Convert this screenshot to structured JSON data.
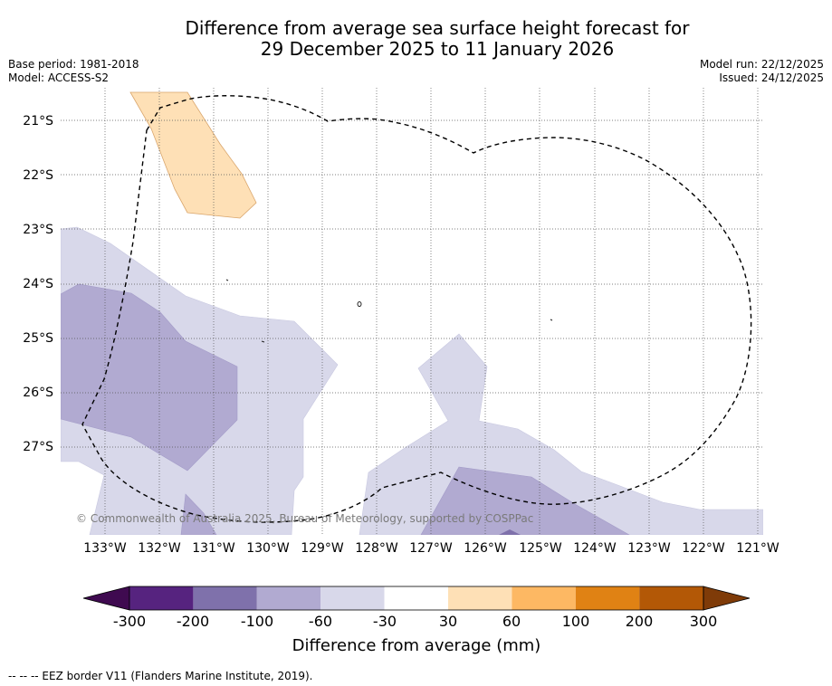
{
  "header": {
    "title_line1": "Difference from average sea surface height forecast for",
    "title_line2": "29 December 2025 to 11 January 2026",
    "base_period": "Base period: 1981-2018",
    "model": "Model: ACCESS-S2",
    "model_run": "Model run: 22/12/2025",
    "issued": "Issued: 24/12/2025"
  },
  "map": {
    "lat_labels": [
      "21°S",
      "22°S",
      "23°S",
      "24°S",
      "25°S",
      "26°S",
      "27°S"
    ],
    "lon_labels": [
      "133°W",
      "132°W",
      "131°W",
      "130°W",
      "129°W",
      "128°W",
      "127°W",
      "126°W",
      "125°W",
      "124°W",
      "123°W",
      "122°W",
      "121°W"
    ],
    "copyright": "© Commonwealth of Australia 2025, Bureau of Meteorology, supported by COSPPac"
  },
  "colorbar": {
    "ticks": [
      "-300",
      "-200",
      "-100",
      "-60",
      "-30",
      "30",
      "60",
      "100",
      "200",
      "300"
    ],
    "colors": [
      "#3f0a50",
      "#56237f",
      "#7f71ab",
      "#b1aad1",
      "#d8d8ea",
      "#ffffff",
      "#fee0b6",
      "#fdb863",
      "#e08214",
      "#b35806",
      "#7f3b08"
    ],
    "label": "Difference from average (mm)"
  },
  "footnote": "--  --  -- EEZ border V11 (Flanders Marine Institute, 2019)."
}
